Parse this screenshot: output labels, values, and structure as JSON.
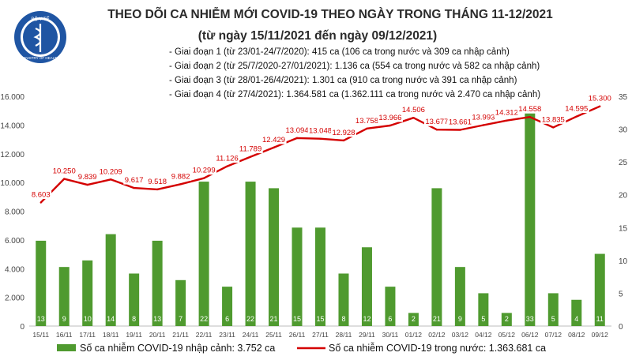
{
  "header": {
    "logo_text_top": "BỘ Y TẾ",
    "logo_text_bottom": "MINISTRY OF HEALTH",
    "title": "THEO DÕI CA NHIỄM MỚI COVID-19 THEO NGÀY TRONG THÁNG 11-12/2021",
    "subtitle": "(từ ngày 15/11/2021 đến ngày 09/12/2021)"
  },
  "notes": [
    "- Giai đoạn 1 (từ 23/01-24/7/2020): 415 ca (106 ca trong nước và 309 ca nhập cảnh)",
    "- Giai đoạn 2 (từ 25/7/2020-27/01/2021): 1.136 ca (554 ca trong nước và 582 ca nhập cảnh)",
    "- Giai đoạn 3 (từ 28/01-26/4/2021): 1.301 ca (910 ca trong nước và 391 ca nhập cảnh)",
    "- Giai đoạn 4 (từ 27/4/2021): 1.364.581 ca (1.362.111 ca trong nước và 2.470 ca nhập cảnh)"
  ],
  "legend": {
    "bar_label": "Số ca nhiễm COVID-19 nhập cảnh: 3.752 ca",
    "line_label": "Số ca nhiễm COVID-19 trong nước: 1.363.681 ca"
  },
  "colors": {
    "bar": "#4f9a2f",
    "line": "#d40000",
    "bar_label": "#ffffff",
    "line_label": "#d40000"
  },
  "chart_data": {
    "type": "bar+line",
    "categories": [
      "15/11",
      "16/11",
      "17/11",
      "18/11",
      "19/11",
      "20/11",
      "21/11",
      "22/11",
      "23/11",
      "24/11",
      "25/11",
      "26/11",
      "27/11",
      "28/11",
      "29/11",
      "30/11",
      "01/12",
      "02/12",
      "03/12",
      "04/12",
      "05/12",
      "06/12",
      "07/12",
      "08/12",
      "09/12"
    ],
    "series": [
      {
        "name": "Số ca nhiễm COVID-19 nhập cảnh: 3.752 ca",
        "type": "bar",
        "axis": "right",
        "values": [
          13,
          9,
          10,
          14,
          8,
          13,
          7,
          22,
          6,
          22,
          21,
          15,
          15,
          8,
          12,
          6,
          2,
          21,
          9,
          5,
          2,
          33,
          5,
          4,
          11
        ],
        "labels": [
          "13",
          "9",
          "10",
          "14",
          "8",
          "13",
          "7",
          "22",
          "6",
          "22",
          "21",
          "15",
          "15",
          "8",
          "12",
          "6",
          "2",
          "21",
          "9",
          "5",
          "2",
          "33",
          "5",
          "4",
          "11"
        ]
      },
      {
        "name": "Số ca nhiễm COVID-19 trong nước: 1.363.681 ca",
        "type": "line",
        "axis": "left",
        "values": [
          8603,
          10250,
          9839,
          10209,
          9617,
          9518,
          9882,
          10299,
          11126,
          11789,
          12429,
          13094,
          13048,
          12928,
          13758,
          13966,
          14506,
          13677,
          13661,
          13993,
          14312,
          14558,
          13835,
          14595,
          15300
        ],
        "labels": [
          "8.603",
          "10.250",
          "9.839",
          "10.209",
          "9.617",
          "9.518",
          "9.882",
          "10.299",
          "11.126",
          "11.789",
          "12.429",
          "13.094",
          "13.048",
          "12.928",
          "13.758",
          "13.966",
          "14.506",
          "13.677",
          "13.661",
          "13.993",
          "14.312",
          "14.558",
          "13.835",
          "14.595",
          "15.300"
        ]
      }
    ],
    "left_axis": {
      "min": 0,
      "max": 16000,
      "ticks": [
        "0",
        "2.000",
        "4.000",
        "6.000",
        "8.000",
        "10.000",
        "12.000",
        "14.000",
        "16.000"
      ],
      "values": [
        0,
        2000,
        4000,
        6000,
        8000,
        10000,
        12000,
        14000,
        16000
      ]
    },
    "right_axis": {
      "min": 0,
      "max": 35,
      "ticks": [
        "0",
        "5",
        "10",
        "15",
        "20",
        "25",
        "30",
        "35"
      ],
      "values": [
        0,
        5,
        10,
        15,
        20,
        25,
        30,
        35
      ]
    },
    "grid": false,
    "legend_position": "bottom"
  }
}
